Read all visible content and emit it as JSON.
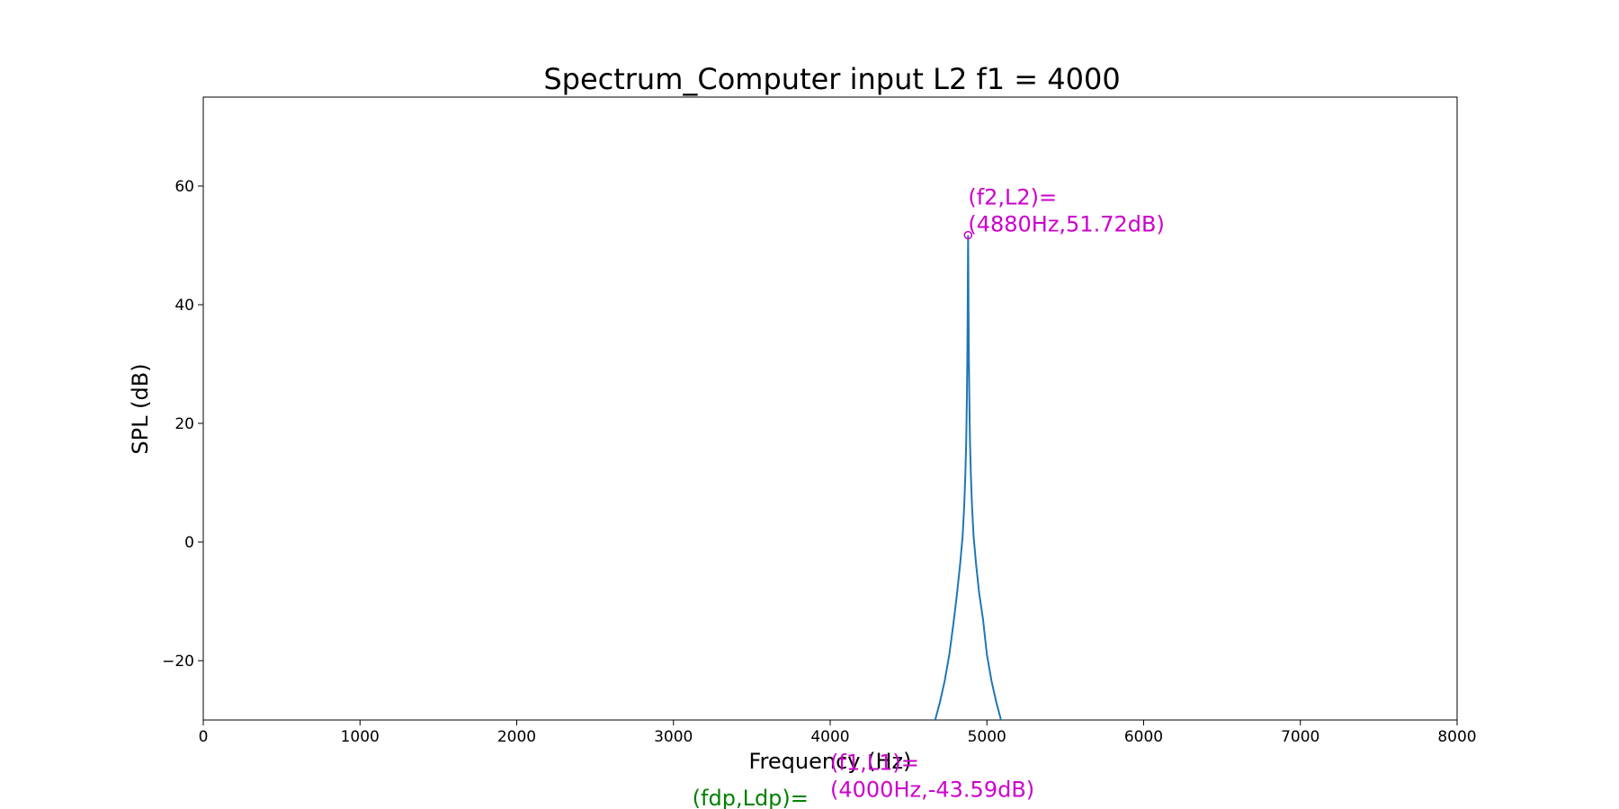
{
  "chart_data": {
    "type": "line",
    "title": "Spectrum_Computer input L2 f1 = 4000",
    "xlabel": "Frequency (Hz)",
    "ylabel": "SPL (dB)",
    "xlim": [
      0,
      8000
    ],
    "ylim": [
      -30,
      75
    ],
    "x_ticks": [
      0,
      1000,
      2000,
      3000,
      4000,
      5000,
      6000,
      7000,
      8000
    ],
    "x_tick_labels": [
      "0",
      "1000",
      "2000",
      "3000",
      "4000",
      "5000",
      "6000",
      "7000",
      "8000"
    ],
    "y_ticks": [
      -20,
      0,
      20,
      40,
      60
    ],
    "y_tick_labels": [
      "−20",
      "0",
      "20",
      "40",
      "60"
    ],
    "grid": false,
    "line_color": "#1f77b4",
    "series": [
      {
        "x": [
          4670,
          4700,
          4730,
          4760,
          4790,
          4810,
          4830,
          4845,
          4855,
          4862,
          4868,
          4872,
          4875,
          4877,
          4878,
          4879,
          4880,
          4881,
          4882,
          4883,
          4885,
          4888,
          4892,
          4898,
          4905,
          4915,
          4930,
          4950,
          4975,
          5000,
          5030,
          5060,
          5090
        ],
        "y": [
          -30,
          -27,
          -23.5,
          -19,
          -13,
          -8.5,
          -3.5,
          1,
          6,
          11,
          17,
          24,
          31,
          38,
          43,
          48,
          51.72,
          48,
          43,
          38,
          31,
          24,
          17,
          11,
          6,
          1,
          -3.5,
          -8.5,
          -13,
          -19,
          -23.5,
          -27,
          -30
        ]
      }
    ],
    "markers": [
      {
        "x": 4880,
        "y": 51.72,
        "color": "#cc00cc"
      }
    ],
    "annotations": [
      {
        "text1": "(f2,L2)=",
        "text2": "(4880Hz,51.72dB)",
        "x": 4880,
        "y": 51.72,
        "color": "#cc00cc"
      },
      {
        "text1": "(f1,L1)=",
        "text2": "(4000Hz,-43.59dB)",
        "x": 4000,
        "y": -43.59,
        "color": "#cc00cc"
      },
      {
        "text1": "(fdp,Ldp)=",
        "x": 3120,
        "y": -45,
        "color": "#008000"
      }
    ]
  }
}
